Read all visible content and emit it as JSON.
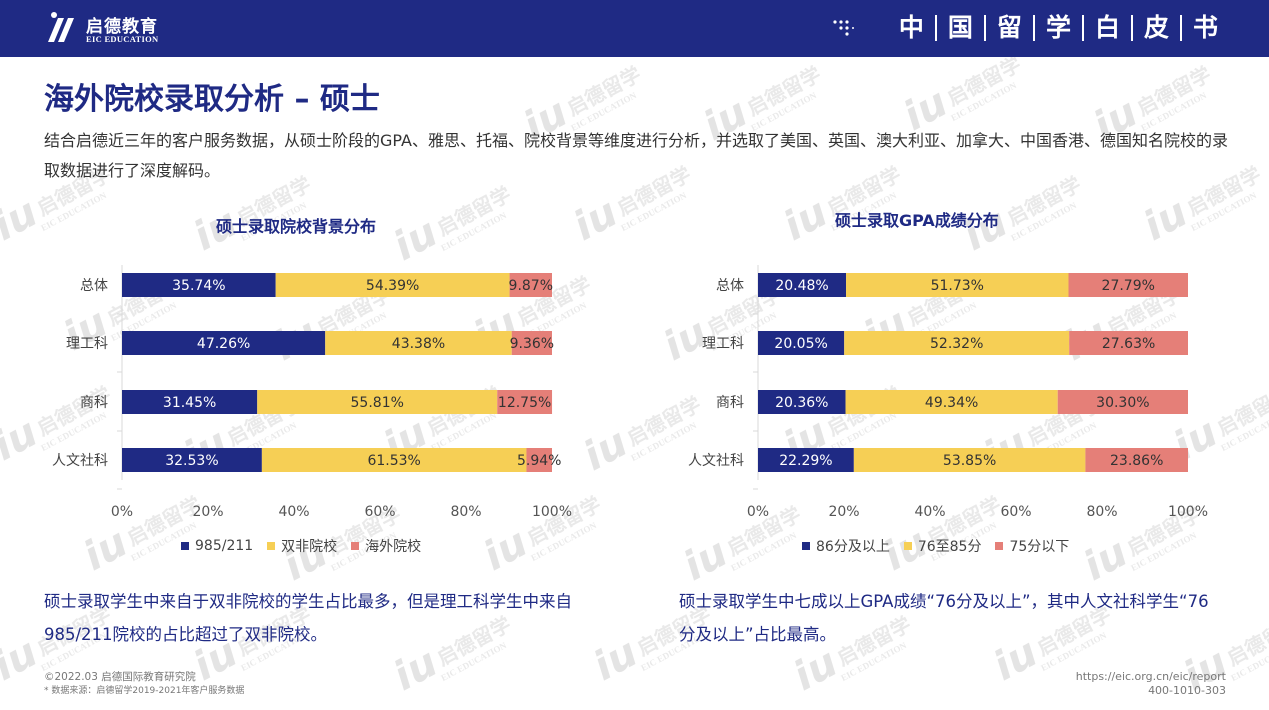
{
  "header": {
    "logo_cn": "启德教育",
    "logo_en": "EIC EDUCATION",
    "banner_chars": [
      "中",
      "国",
      "留",
      "学",
      "白",
      "皮",
      "书"
    ]
  },
  "watermark": {
    "iu": "iu",
    "cn": "启德留学",
    "en": "EIC EDUCATION"
  },
  "page_title": "海外院校录取分析 – 硕士",
  "intro": "结合启德近三年的客户服务数据，从硕士阶段的GPA、雅思、托福、院校背景等维度进行分析，并选取了美国、英国、澳大利亚、加拿大、中国香港、德国知名院校的录取数据进行了深度解码。",
  "colors": {
    "navy": "#1f2a84",
    "yellow": "#f6cf55",
    "pink": "#e57f78"
  },
  "chart_data": [
    {
      "type": "bar",
      "stacked": true,
      "orientation": "horizontal",
      "title": "硕士录取院校背景分布",
      "categories": [
        "总体",
        "理工科",
        "商科",
        "人文社科"
      ],
      "series": [
        {
          "name": "985/211",
          "values": [
            35.74,
            47.26,
            31.45,
            32.53
          ],
          "labels": [
            "35.74%",
            "47.26%",
            "31.45%",
            "32.53%"
          ]
        },
        {
          "name": "双非院校",
          "values": [
            54.39,
            43.38,
            55.81,
            61.53
          ],
          "labels": [
            "54.39%",
            "43.38%",
            "55.81%",
            "61.53%"
          ]
        },
        {
          "name": "海外院校",
          "values": [
            9.87,
            9.36,
            12.75,
            5.94
          ],
          "labels": [
            "9.87%",
            "9.36%",
            "12.75%",
            "5.94%"
          ]
        }
      ],
      "xlim": [
        0,
        100
      ],
      "xticks": [
        "0%",
        "20%",
        "40%",
        "60%",
        "80%",
        "100%"
      ],
      "legend_position": "bottom",
      "grid": false
    },
    {
      "type": "bar",
      "stacked": true,
      "orientation": "horizontal",
      "title": "硕士录取GPA成绩分布",
      "categories": [
        "总体",
        "理工科",
        "商科",
        "人文社科"
      ],
      "series": [
        {
          "name": "86分及以上",
          "values": [
            20.48,
            20.05,
            20.36,
            22.29
          ],
          "labels": [
            "20.48%",
            "20.05%",
            "20.36%",
            "22.29%"
          ]
        },
        {
          "name": "76至85分",
          "values": [
            51.73,
            52.32,
            49.34,
            53.85
          ],
          "labels": [
            "51.73%",
            "52.32%",
            "49.34%",
            "53.85%"
          ]
        },
        {
          "name": "75分以下",
          "values": [
            27.79,
            27.63,
            30.3,
            23.86
          ],
          "labels": [
            "27.79%",
            "27.63%",
            "30.30%",
            "23.86%"
          ]
        }
      ],
      "xlim": [
        0,
        100
      ],
      "xticks": [
        "0%",
        "20%",
        "40%",
        "60%",
        "80%",
        "100%"
      ],
      "legend_position": "bottom",
      "grid": false
    }
  ],
  "conclusions": [
    "硕士录取学生中来自于双非院校的学生占比最多，但是理工科学生中来自985/211院校的占比超过了双非院校。",
    "硕士录取学生中七成以上GPA成绩“76分及以上”，其中人文社科学生“76分及以上”占比最高。"
  ],
  "footer": {
    "copyright": "©2022.03 启德国际教育研究院",
    "source": "* 数据来源：启德留学2019-2021年客户服务数据",
    "url": "https://eic.org.cn/eic/report",
    "phone": "400-1010-303"
  }
}
